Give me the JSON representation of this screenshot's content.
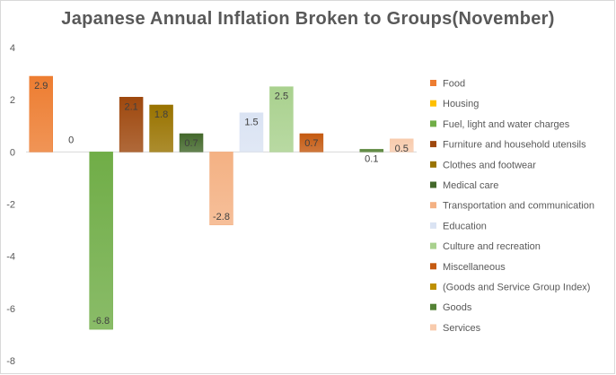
{
  "chart_data": {
    "type": "bar",
    "title": "Japanese Annual Inflation Broken to Groups(November)",
    "xlabel": "",
    "ylabel": "",
    "ylim": [
      -8,
      4
    ],
    "yticks": [
      4,
      2,
      0,
      -2,
      -4,
      -6,
      -8
    ],
    "grid": false,
    "legend_position": "right",
    "series": [
      {
        "name": "Food",
        "value": 2.9,
        "label": "2.9",
        "color": "#ed7d31"
      },
      {
        "name": "Housing",
        "value": 0,
        "label": "0",
        "color": "#ffc000"
      },
      {
        "name": "Fuel, light and water charges",
        "value": -6.8,
        "label": "-6.8",
        "color": "#70ad47"
      },
      {
        "name": "Furniture and household utensils",
        "value": 2.1,
        "label": "2.1",
        "color": "#9e480e"
      },
      {
        "name": "Clothes and footwear",
        "value": 1.8,
        "label": "1.8",
        "color": "#997300"
      },
      {
        "name": "Medical care",
        "value": 0.7,
        "label": "0.7",
        "color": "#43682b"
      },
      {
        "name": "Transportation and communication",
        "value": -2.8,
        "label": "-2.8",
        "color": "#f4b183"
      },
      {
        "name": "Education",
        "value": 1.5,
        "label": "1.5",
        "color": "#dae3f3"
      },
      {
        "name": "Culture and recreation",
        "value": 2.5,
        "label": "2.5",
        "color": "#a9d18e"
      },
      {
        "name": "Miscellaneous",
        "value": 0.7,
        "label": "0.7",
        "color": "#c55a11"
      },
      {
        "name": "(Goods and Service Group Index)",
        "value": null,
        "label": "",
        "color": "#bf9000"
      },
      {
        "name": "Goods",
        "value": 0.1,
        "label": "0.1",
        "color": "#548235"
      },
      {
        "name": "Services",
        "value": 0.5,
        "label": "0.5",
        "color": "#f8cbad"
      }
    ]
  }
}
